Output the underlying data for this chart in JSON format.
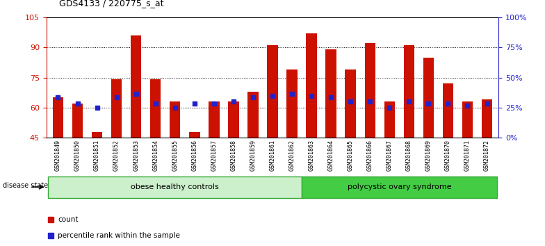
{
  "title": "GDS4133 / 220775_s_at",
  "samples": [
    "GSM201849",
    "GSM201850",
    "GSM201851",
    "GSM201852",
    "GSM201853",
    "GSM201854",
    "GSM201855",
    "GSM201856",
    "GSM201857",
    "GSM201858",
    "GSM201859",
    "GSM201861",
    "GSM201862",
    "GSM201863",
    "GSM201864",
    "GSM201865",
    "GSM201866",
    "GSM201867",
    "GSM201868",
    "GSM201869",
    "GSM201870",
    "GSM201871",
    "GSM201872"
  ],
  "count_values": [
    65,
    62,
    48,
    74,
    96,
    74,
    63,
    48,
    63,
    63,
    68,
    91,
    79,
    97,
    89,
    79,
    92,
    63,
    91,
    85,
    72,
    63,
    64
  ],
  "percentile_values": [
    65,
    62,
    60,
    65,
    67,
    62,
    60,
    62,
    62,
    63,
    65,
    66,
    67,
    66,
    65,
    63,
    63,
    60,
    63,
    62,
    62,
    61,
    62
  ],
  "group1_label": "obese healthy controls",
  "group2_label": "polycystic ovary syndrome",
  "group1_count": 13,
  "group2_count": 10,
  "bar_color": "#cc1100",
  "percentile_color": "#2222cc",
  "ylim_left": [
    45,
    105
  ],
  "yticks_left": [
    45,
    60,
    75,
    90,
    105
  ],
  "ylim_right": [
    0,
    100
  ],
  "yticks_right": [
    0,
    25,
    50,
    75,
    100
  ],
  "ylabel_left_color": "#cc1100",
  "ylabel_right_color": "#2222cc",
  "group1_bg": "#ccf0cc",
  "group2_bg": "#44cc44",
  "legend_count_label": "count",
  "legend_percentile_label": "percentile rank within the sample"
}
